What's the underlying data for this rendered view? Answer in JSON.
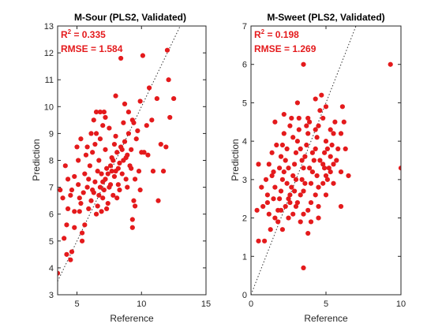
{
  "figure": {
    "background": "#ffffff"
  },
  "chart_data": [
    {
      "type": "scatter",
      "title": "M-Sour (PLS2, Validated)",
      "xlabel": "Reference",
      "ylabel": "Prediction",
      "xlim": [
        3.5,
        15
      ],
      "ylim": [
        3,
        13
      ],
      "xticks": [
        5,
        10,
        15
      ],
      "yticks": [
        3,
        4,
        5,
        6,
        7,
        8,
        9,
        10,
        11,
        12,
        13
      ],
      "grid": false,
      "identity_line": true,
      "marker_color": "#e41a1c",
      "stats": {
        "r2_label": "R",
        "r2_exp": "2",
        "r2_text": " = 0.335",
        "rmse_text": "RMSE = 1.584",
        "color": "#e41a1c"
      },
      "points": [
        [
          3.5,
          3.8
        ],
        [
          4.2,
          4.5
        ],
        [
          4.5,
          4.3
        ],
        [
          4.6,
          4.6
        ],
        [
          4,
          5.1
        ],
        [
          4.2,
          5.6
        ],
        [
          4.8,
          5.5
        ],
        [
          5.4,
          5
        ],
        [
          5.4,
          5.3
        ],
        [
          5.6,
          5.6
        ],
        [
          5.2,
          6.1
        ],
        [
          4.3,
          6.2
        ],
        [
          4.8,
          6.1
        ],
        [
          3.9,
          6.6
        ],
        [
          4.5,
          6.7
        ],
        [
          5.2,
          6.6
        ],
        [
          3.7,
          6.9
        ],
        [
          4.3,
          7.3
        ],
        [
          4.8,
          7.4
        ],
        [
          4.1,
          7.8
        ],
        [
          5.1,
          8
        ],
        [
          5.7,
          8.2
        ],
        [
          5,
          8.5
        ],
        [
          5.3,
          8.8
        ],
        [
          6.1,
          9
        ],
        [
          6.3,
          9.5
        ],
        [
          6.5,
          9.8
        ],
        [
          6.8,
          9.8
        ],
        [
          7.1,
          9.8
        ],
        [
          5.9,
          6.2
        ],
        [
          6.1,
          6.5
        ],
        [
          6.2,
          6.9
        ],
        [
          6.4,
          7.2
        ],
        [
          6.5,
          6
        ],
        [
          6.6,
          6.3
        ],
        [
          6.7,
          6.7
        ],
        [
          6.8,
          7
        ],
        [
          6.9,
          7.5
        ],
        [
          7,
          6.6
        ],
        [
          7.1,
          6.9
        ],
        [
          7.2,
          7.3
        ],
        [
          7.3,
          7.7
        ],
        [
          7.4,
          6.4
        ],
        [
          7.5,
          7
        ],
        [
          7.6,
          7.8
        ],
        [
          7.7,
          8.1
        ],
        [
          7.8,
          6.7
        ],
        [
          7.9,
          7.4
        ],
        [
          8,
          7.6
        ],
        [
          8.1,
          8.3
        ],
        [
          8.2,
          7.1
        ],
        [
          8.3,
          7.9
        ],
        [
          8.4,
          8.5
        ],
        [
          8.5,
          7.5
        ],
        [
          8.6,
          8
        ],
        [
          8.7,
          8.7
        ],
        [
          8.8,
          7.3
        ],
        [
          8.9,
          8.2
        ],
        [
          9,
          9
        ],
        [
          9.1,
          7.8
        ],
        [
          9.2,
          8.4
        ],
        [
          9.3,
          9.5
        ],
        [
          9.4,
          6.5
        ],
        [
          9.5,
          6.3
        ],
        [
          9.6,
          8.8
        ],
        [
          9.7,
          9.1
        ],
        [
          9.8,
          7.6
        ],
        [
          10,
          8.3
        ],
        [
          10.2,
          8.3
        ],
        [
          10.4,
          9.3
        ],
        [
          10.5,
          8.2
        ],
        [
          10.6,
          10.7
        ],
        [
          10.8,
          9.5
        ],
        [
          10.9,
          7.6
        ],
        [
          11.2,
          10.3
        ],
        [
          11.3,
          6.5
        ],
        [
          11.5,
          8.6
        ],
        [
          11.7,
          7.6
        ],
        [
          11.9,
          8.5
        ],
        [
          12.1,
          11
        ],
        [
          12.2,
          9.6
        ],
        [
          12.5,
          10.3
        ],
        [
          12,
          12.1
        ],
        [
          10.1,
          11.9
        ],
        [
          8.4,
          11.8
        ],
        [
          8,
          10.4
        ],
        [
          9.3,
          5.5
        ],
        [
          9.3,
          5.8
        ],
        [
          6.2,
          8.3
        ],
        [
          6.8,
          8.8
        ],
        [
          7.5,
          9.2
        ],
        [
          8,
          8.9
        ],
        [
          5.6,
          7.5
        ],
        [
          5.8,
          7
        ],
        [
          6,
          7.8
        ],
        [
          7.2,
          8.4
        ],
        [
          7.9,
          8.6
        ],
        [
          8.6,
          9.4
        ],
        [
          9,
          9.8
        ],
        [
          6.3,
          6.8
        ],
        [
          7,
          7.2
        ],
        [
          7.6,
          7.1
        ],
        [
          8.2,
          7.7
        ],
        [
          8.8,
          8.1
        ],
        [
          6.7,
          8
        ],
        [
          5.5,
          6.8
        ],
        [
          6.4,
          8.6
        ],
        [
          7.3,
          6.2
        ],
        [
          8.1,
          6.6
        ],
        [
          8.9,
          7
        ],
        [
          9.5,
          7.3
        ],
        [
          9.9,
          6.9
        ],
        [
          7,
          9.3
        ],
        [
          7.8,
          8
        ],
        [
          8.5,
          8.4
        ],
        [
          9.2,
          7.7
        ],
        [
          6.9,
          6.1
        ],
        [
          7.4,
          7.5
        ],
        [
          5.9,
          7.3
        ],
        [
          6.6,
          7.6
        ],
        [
          7.7,
          7.6
        ],
        [
          8.3,
          6.9
        ],
        [
          4.6,
          6.9
        ],
        [
          5.1,
          7.1
        ],
        [
          5.3,
          6.4
        ],
        [
          5.8,
          8.5
        ],
        [
          6.5,
          9
        ],
        [
          7.2,
          9.6
        ],
        [
          8.7,
          10.1
        ],
        [
          9.4,
          9.4
        ],
        [
          9.9,
          10.2
        ]
      ]
    },
    {
      "type": "scatter",
      "title": "M-Sweet (PLS2, Validated)",
      "xlabel": "Reference",
      "ylabel": "Prediction",
      "xlim": [
        0,
        10
      ],
      "ylim": [
        0,
        7
      ],
      "xticks": [
        0,
        5,
        10
      ],
      "yticks": [
        0,
        1,
        2,
        3,
        4,
        5,
        6,
        7
      ],
      "grid": false,
      "identity_line": true,
      "marker_color": "#e41a1c",
      "stats": {
        "r2_label": "R",
        "r2_exp": "2",
        "r2_text": " = 0.198",
        "rmse_text": "RMSE = 1.269",
        "color": "#e41a1c"
      },
      "points": [
        [
          0.5,
          1.4
        ],
        [
          0.9,
          1.4
        ],
        [
          0.4,
          2.2
        ],
        [
          0.8,
          2.3
        ],
        [
          1.1,
          2.6
        ],
        [
          0.7,
          2.8
        ],
        [
          1,
          3
        ],
        [
          0.5,
          3.4
        ],
        [
          1.2,
          3.4
        ],
        [
          1.4,
          3.7
        ],
        [
          1.6,
          4.5
        ],
        [
          1.3,
          1.7
        ],
        [
          1.6,
          2
        ],
        [
          1.8,
          2.2
        ],
        [
          1.9,
          2.5
        ],
        [
          2,
          2.7
        ],
        [
          2.1,
          3
        ],
        [
          2.2,
          3.2
        ],
        [
          2.3,
          3.5
        ],
        [
          2.4,
          3.8
        ],
        [
          2.5,
          2
        ],
        [
          2.6,
          2.4
        ],
        [
          2.7,
          2.8
        ],
        [
          2.8,
          3.1
        ],
        [
          2.9,
          3.4
        ],
        [
          3,
          3.7
        ],
        [
          3.1,
          4
        ],
        [
          3.2,
          4.3
        ],
        [
          3.3,
          2.6
        ],
        [
          3.4,
          3
        ],
        [
          3.5,
          3.3
        ],
        [
          3.6,
          3.6
        ],
        [
          3.7,
          3.9
        ],
        [
          3.8,
          4.2
        ],
        [
          3.9,
          4.5
        ],
        [
          4,
          2.9
        ],
        [
          4.1,
          3.2
        ],
        [
          4.2,
          3.5
        ],
        [
          4.3,
          3.8
        ],
        [
          4.4,
          4.1
        ],
        [
          4.5,
          4.4
        ],
        [
          4.6,
          4.8
        ],
        [
          4.7,
          5.2
        ],
        [
          4.8,
          3.4
        ],
        [
          4.9,
          3.7
        ],
        [
          5,
          4
        ],
        [
          5.1,
          3
        ],
        [
          5.2,
          3.3
        ],
        [
          5.3,
          3.6
        ],
        [
          5.4,
          3.9
        ],
        [
          5.5,
          4.2
        ],
        [
          5.6,
          4.5
        ],
        [
          5.8,
          3.8
        ],
        [
          6,
          4.2
        ],
        [
          6.1,
          4.9
        ],
        [
          6.2,
          4.5
        ],
        [
          6.5,
          3.1
        ],
        [
          6,
          2.3
        ],
        [
          4.5,
          2
        ],
        [
          3.8,
          1.6
        ],
        [
          3.5,
          0.7
        ],
        [
          3.5,
          6
        ],
        [
          4.3,
          5.1
        ],
        [
          5,
          4.9
        ],
        [
          9.3,
          6
        ],
        [
          10,
          3.3
        ],
        [
          1.7,
          3.9
        ],
        [
          2.2,
          4.2
        ],
        [
          2.7,
          4.6
        ],
        [
          3.1,
          5
        ],
        [
          1.5,
          3.2
        ],
        [
          2,
          3.6
        ],
        [
          2.5,
          3.3
        ],
        [
          3,
          3
        ],
        [
          3.5,
          2.7
        ],
        [
          4,
          2.4
        ],
        [
          4.5,
          2.8
        ],
        [
          5,
          3.1
        ],
        [
          5.5,
          3.4
        ],
        [
          1.8,
          1.9
        ],
        [
          2.3,
          2.3
        ],
        [
          2.8,
          2.1
        ],
        [
          3.3,
          1.9
        ],
        [
          3.8,
          2.2
        ],
        [
          4.3,
          2.6
        ],
        [
          4.8,
          2.9
        ],
        [
          5.3,
          3.2
        ],
        [
          1.2,
          2.1
        ],
        [
          1.6,
          2.8
        ],
        [
          2.1,
          1.7
        ],
        [
          2.6,
          2.6
        ],
        [
          3.1,
          2.4
        ],
        [
          3.6,
          2.9
        ],
        [
          4.1,
          3.7
        ],
        [
          4.6,
          3.5
        ],
        [
          5.1,
          3.8
        ],
        [
          5.7,
          3.5
        ],
        [
          6.3,
          3.8
        ],
        [
          1.4,
          3.1
        ],
        [
          1.9,
          3.3
        ],
        [
          2.4,
          2.9
        ],
        [
          2.9,
          2.7
        ],
        [
          3.4,
          3.5
        ],
        [
          3.9,
          3.3
        ],
        [
          4.4,
          3.1
        ],
        [
          4.9,
          3.3
        ],
        [
          2.2,
          4.7
        ],
        [
          2.8,
          4.1
        ],
        [
          3.3,
          3.8
        ],
        [
          3.8,
          4.6
        ],
        [
          4.3,
          4.3
        ],
        [
          4.8,
          4.6
        ],
        [
          5.3,
          4.3
        ],
        [
          1.1,
          2.4
        ],
        [
          1.5,
          2.5
        ],
        [
          2,
          2.2
        ],
        [
          2.5,
          2.5
        ],
        [
          3,
          2.3
        ],
        [
          3.5,
          2.1
        ],
        [
          4,
          1.9
        ],
        [
          4.5,
          2.3
        ],
        [
          5,
          2.6
        ],
        [
          5.5,
          2.9
        ],
        [
          6,
          3.2
        ],
        [
          2.1,
          3.9
        ],
        [
          2.6,
          4.4
        ],
        [
          3.2,
          4.6
        ],
        [
          3.7,
          4.4
        ]
      ]
    }
  ]
}
